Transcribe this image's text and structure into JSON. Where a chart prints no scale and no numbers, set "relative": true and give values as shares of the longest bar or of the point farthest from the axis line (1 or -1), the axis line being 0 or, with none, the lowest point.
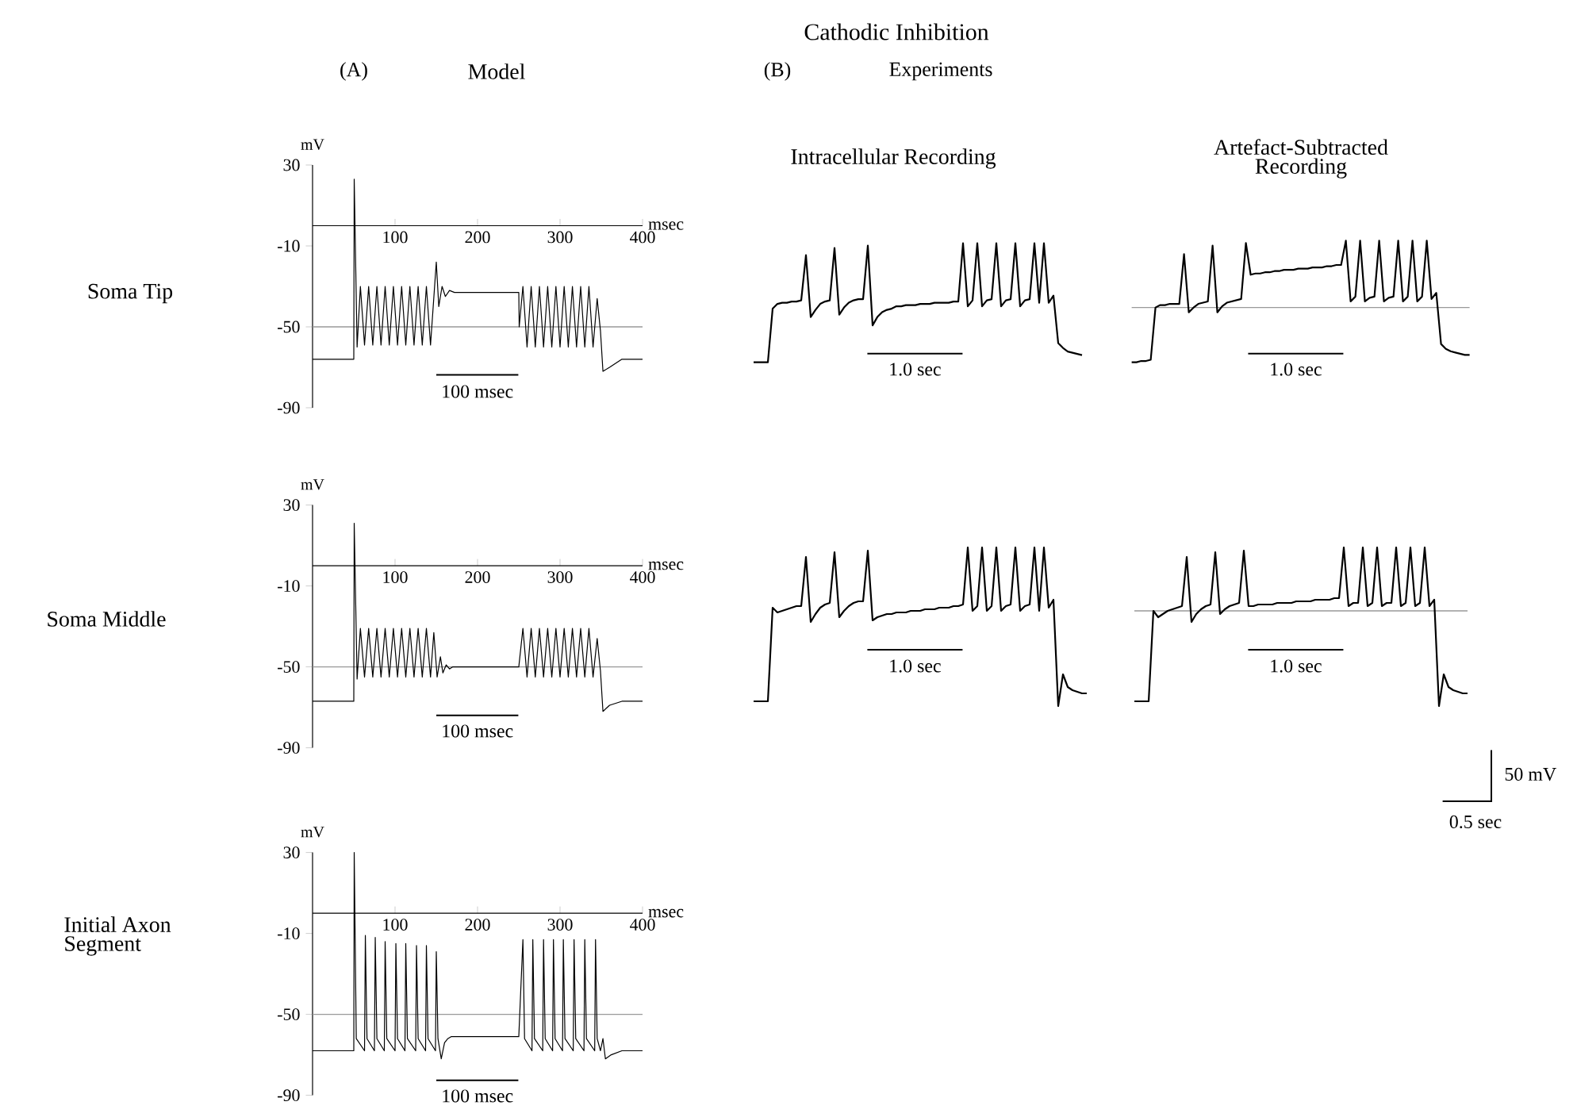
{
  "chart_data": [
    {
      "type": "line",
      "title": "Model",
      "subtitle": "Soma Tip",
      "annotations": [
        "Cathodic Inhibition",
        "(A)",
        "100 msec"
      ],
      "xlabel": "msec",
      "ylabel": "mV",
      "xlim": [
        0,
        400
      ],
      "ylim": [
        -90,
        30
      ],
      "xticks": [
        100,
        200,
        300,
        400
      ],
      "yticks": [
        30,
        -10,
        -50,
        -90
      ],
      "ref_lines": [
        {
          "axis": "y",
          "value": -50,
          "color": "#999999"
        }
      ],
      "series": [
        {
          "color": "#000000",
          "x": [
            0,
            50,
            50.5,
            54,
            58,
            63,
            68,
            73,
            78,
            83,
            88,
            93,
            98,
            103,
            108,
            113,
            118,
            123,
            128,
            133,
            138,
            143,
            150,
            153,
            157,
            161,
            166,
            172,
            250,
            250.5,
            255,
            260,
            265,
            270,
            275,
            280,
            285,
            290,
            295,
            300,
            305,
            310,
            315,
            320,
            325,
            330,
            335,
            340,
            345,
            349,
            352,
            360,
            375,
            400
          ],
          "values": [
            -66,
            -66,
            23,
            -60,
            -30,
            -59,
            -30,
            -59,
            -30,
            -59,
            -30,
            -59,
            -30,
            -59,
            -30,
            -59,
            -30,
            -59,
            -30,
            -59,
            -30,
            -59,
            -18,
            -40,
            -30,
            -35,
            -32,
            -33,
            -33,
            -50,
            -30,
            -60,
            -30,
            -60,
            -30,
            -60,
            -30,
            -60,
            -30,
            -60,
            -30,
            -60,
            -30,
            -60,
            -30,
            -60,
            -30,
            -60,
            -36,
            -52,
            -72,
            -70,
            -66,
            -66
          ]
        }
      ]
    },
    {
      "type": "line",
      "subtitle": "Soma Middle",
      "annotations": [
        "100 msec"
      ],
      "xlabel": "msec",
      "ylabel": "mV",
      "xlim": [
        0,
        400
      ],
      "ylim": [
        -90,
        30
      ],
      "xticks": [
        100,
        200,
        300,
        400
      ],
      "yticks": [
        30,
        -10,
        -50,
        -90
      ],
      "ref_lines": [
        {
          "axis": "y",
          "value": -50,
          "color": "#999999"
        }
      ],
      "series": [
        {
          "color": "#000000",
          "x": [
            0,
            50,
            50.5,
            54,
            58,
            63,
            68,
            73,
            78,
            83,
            88,
            93,
            98,
            103,
            108,
            113,
            118,
            123,
            128,
            133,
            138,
            143,
            147,
            151,
            155,
            158,
            162,
            166,
            170,
            250,
            255,
            260,
            265,
            270,
            275,
            280,
            285,
            290,
            295,
            300,
            305,
            310,
            315,
            320,
            325,
            330,
            335,
            340,
            345,
            349,
            352,
            360,
            375,
            400
          ],
          "values": [
            -67,
            -67,
            21,
            -56,
            -31,
            -55,
            -31,
            -55,
            -31,
            -55,
            -31,
            -55,
            -31,
            -55,
            -31,
            -55,
            -31,
            -55,
            -31,
            -55,
            -31,
            -55,
            -33,
            -55,
            -45,
            -53,
            -49,
            -51,
            -50,
            -50,
            -31,
            -55,
            -31,
            -55,
            -31,
            -55,
            -31,
            -55,
            -31,
            -55,
            -31,
            -55,
            -31,
            -55,
            -31,
            -55,
            -31,
            -55,
            -36,
            -52,
            -72,
            -69,
            -67,
            -67
          ]
        }
      ]
    },
    {
      "type": "line",
      "subtitle": "Initial Axon Segment",
      "annotations": [
        "100 msec"
      ],
      "xlabel": "msec",
      "ylabel": "mV",
      "xlim": [
        0,
        400
      ],
      "ylim": [
        -90,
        30
      ],
      "xticks": [
        100,
        200,
        300,
        400
      ],
      "yticks": [
        30,
        -10,
        -50,
        -90
      ],
      "ref_lines": [
        {
          "axis": "y",
          "value": -50,
          "color": "#999999"
        }
      ],
      "series": [
        {
          "color": "#000000",
          "x": [
            0,
            50,
            50.5,
            53,
            63,
            64,
            66,
            75,
            76,
            78,
            87,
            88,
            90,
            100,
            101,
            103,
            112,
            113,
            115,
            125,
            126,
            128,
            137,
            138,
            140,
            149,
            150,
            152,
            156,
            160,
            164,
            168,
            250,
            255,
            257,
            266,
            267,
            269,
            279,
            280,
            282,
            291,
            292,
            294,
            303,
            304,
            306,
            316,
            317,
            319,
            329,
            330,
            332,
            342,
            343,
            345,
            349,
            352,
            355,
            362,
            375,
            400
          ],
          "values": [
            -68,
            -68,
            30,
            -62,
            -68,
            -11,
            -62,
            -68,
            -12,
            -62,
            -68,
            -14,
            -62,
            -68,
            -15,
            -62,
            -68,
            -15,
            -62,
            -68,
            -16,
            -62,
            -68,
            -16,
            -62,
            -68,
            -19,
            -62,
            -72,
            -64,
            -62,
            -61,
            -61,
            -13,
            -62,
            -68,
            -13,
            -62,
            -68,
            -13,
            -62,
            -68,
            -13,
            -62,
            -68,
            -13,
            -62,
            -68,
            -13,
            -62,
            -68,
            -13,
            -62,
            -68,
            -13,
            -62,
            -68,
            -62,
            -72,
            -70,
            -68,
            -68
          ]
        }
      ]
    },
    {
      "type": "line",
      "relative": true,
      "tick_labels": false,
      "title": "Intracellular Recording",
      "annotations": [
        "(B)",
        "Experiments",
        "1.0 sec"
      ],
      "categories": [
        null,
        null,
        null,
        null,
        null,
        null,
        null,
        null,
        null,
        null,
        null,
        null,
        null,
        null,
        null,
        null,
        null,
        null,
        null,
        null,
        null,
        null,
        null,
        null,
        null,
        null,
        null,
        null,
        null,
        null,
        null,
        null,
        null,
        null,
        null,
        null,
        null,
        null,
        null,
        null,
        null,
        null,
        null,
        null,
        null,
        null,
        null,
        null,
        null,
        null,
        null,
        null,
        null,
        null,
        null,
        null,
        null,
        null,
        null,
        null,
        null,
        null,
        null,
        null,
        null,
        null,
        null,
        null,
        null,
        null
      ],
      "series": [
        {
          "color": "#000000",
          "values": [
            0,
            0,
            0,
            0,
            0.45,
            0.49,
            0.5,
            0.5,
            0.51,
            0.51,
            0.52,
            0.9,
            0.38,
            0.44,
            0.49,
            0.51,
            0.52,
            0.96,
            0.4,
            0.46,
            0.5,
            0.52,
            0.53,
            0.53,
            0.98,
            0.31,
            0.38,
            0.42,
            0.44,
            0.45,
            0.47,
            0.47,
            0.48,
            0.48,
            0.48,
            0.49,
            0.49,
            0.49,
            0.5,
            0.5,
            0.5,
            0.5,
            0.51,
            0.51,
            1.0,
            0.47,
            0.52,
            1.0,
            0.47,
            0.52,
            0.53,
            1.0,
            0.47,
            0.52,
            0.53,
            1.0,
            0.47,
            0.52,
            0.53,
            1.0,
            0.5,
            1.0,
            0.5,
            0.56,
            0.16,
            0.12,
            0.09,
            0.08,
            0.07,
            0.06
          ]
        }
      ]
    },
    {
      "type": "line",
      "relative": true,
      "tick_labels": false,
      "title": "Artefact-Subtracted Recording",
      "annotations": [
        "1.0 sec"
      ],
      "categories": [
        null,
        null,
        null,
        null,
        null,
        null,
        null,
        null,
        null,
        null,
        null,
        null,
        null,
        null,
        null,
        null,
        null,
        null,
        null,
        null,
        null,
        null,
        null,
        null,
        null,
        null,
        null,
        null,
        null,
        null,
        null,
        null,
        null,
        null,
        null,
        null,
        null,
        null,
        null,
        null,
        null,
        null,
        null,
        null,
        null,
        null,
        null,
        null,
        null,
        null,
        null,
        null,
        null,
        null,
        null,
        null,
        null,
        null,
        null,
        null,
        null,
        null,
        null,
        null,
        null,
        null,
        null,
        null,
        null,
        null,
        null,
        null
      ],
      "ref_lines": [
        {
          "axis": "y",
          "value": 0.45,
          "color": "#999999"
        }
      ],
      "series": [
        {
          "color": "#000000",
          "values": [
            0,
            0,
            0.01,
            0.01,
            0.02,
            0.45,
            0.47,
            0.47,
            0.48,
            0.48,
            0.48,
            0.89,
            0.41,
            0.45,
            0.48,
            0.49,
            0.5,
            0.96,
            0.41,
            0.46,
            0.49,
            0.5,
            0.51,
            0.52,
            0.98,
            0.72,
            0.73,
            0.73,
            0.74,
            0.74,
            0.75,
            0.75,
            0.76,
            0.76,
            0.76,
            0.77,
            0.77,
            0.77,
            0.78,
            0.78,
            0.78,
            0.79,
            0.79,
            0.8,
            0.8,
            1.0,
            0.5,
            0.54,
            1.0,
            0.5,
            0.53,
            0.54,
            1.0,
            0.5,
            0.53,
            0.54,
            1.0,
            0.5,
            0.54,
            1.0,
            0.5,
            0.54,
            1.0,
            0.52,
            0.57,
            0.15,
            0.11,
            0.09,
            0.08,
            0.07,
            0.06,
            0.06
          ]
        }
      ]
    },
    {
      "type": "line",
      "relative": true,
      "tick_labels": false,
      "annotations": [
        "1.0 sec"
      ],
      "categories": [
        null,
        null,
        null,
        null,
        null,
        null,
        null,
        null,
        null,
        null,
        null,
        null,
        null,
        null,
        null,
        null,
        null,
        null,
        null,
        null,
        null,
        null,
        null,
        null,
        null,
        null,
        null,
        null,
        null,
        null,
        null,
        null,
        null,
        null,
        null,
        null,
        null,
        null,
        null,
        null,
        null,
        null,
        null,
        null,
        null,
        null,
        null,
        null,
        null,
        null,
        null,
        null,
        null,
        null,
        null,
        null,
        null,
        null,
        null,
        null,
        null,
        null,
        null,
        null,
        null,
        null,
        null,
        null,
        null,
        null,
        null
      ],
      "series": [
        {
          "color": "#000000",
          "values": [
            0.03,
            0.03,
            0.03,
            0.03,
            0.62,
            0.59,
            0.6,
            0.61,
            0.62,
            0.63,
            0.63,
            0.94,
            0.53,
            0.58,
            0.62,
            0.64,
            0.65,
            0.97,
            0.56,
            0.6,
            0.63,
            0.65,
            0.66,
            0.66,
            0.98,
            0.54,
            0.56,
            0.57,
            0.58,
            0.58,
            0.59,
            0.59,
            0.59,
            0.6,
            0.6,
            0.6,
            0.61,
            0.61,
            0.61,
            0.62,
            0.62,
            0.62,
            0.63,
            0.63,
            0.64,
            1.0,
            0.6,
            0.63,
            1.0,
            0.6,
            0.63,
            1.0,
            0.6,
            0.63,
            0.64,
            1.0,
            0.6,
            0.63,
            0.64,
            1.0,
            0.6,
            1.0,
            0.62,
            0.67,
            0,
            0.2,
            0.12,
            0.1,
            0.09,
            0.08,
            0.08
          ]
        }
      ]
    },
    {
      "type": "line",
      "relative": true,
      "tick_labels": false,
      "annotations": [
        "1.0 sec",
        "50 mV",
        "0.5 sec"
      ],
      "categories": [
        null,
        null,
        null,
        null,
        null,
        null,
        null,
        null,
        null,
        null,
        null,
        null,
        null,
        null,
        null,
        null,
        null,
        null,
        null,
        null,
        null,
        null,
        null,
        null,
        null,
        null,
        null,
        null,
        null,
        null,
        null,
        null,
        null,
        null,
        null,
        null,
        null,
        null,
        null,
        null,
        null,
        null,
        null,
        null,
        null,
        null,
        null,
        null,
        null,
        null,
        null,
        null,
        null,
        null,
        null,
        null,
        null,
        null,
        null,
        null,
        null,
        null,
        null,
        null,
        null,
        null,
        null,
        null,
        null,
        null,
        null
      ],
      "ref_lines": [
        {
          "axis": "y",
          "value": 0.6,
          "color": "#999999"
        }
      ],
      "series": [
        {
          "color": "#000000",
          "values": [
            0.03,
            0.03,
            0.03,
            0.03,
            0.6,
            0.56,
            0.58,
            0.6,
            0.61,
            0.62,
            0.63,
            0.94,
            0.53,
            0.58,
            0.61,
            0.63,
            0.64,
            0.97,
            0.58,
            0.61,
            0.63,
            0.64,
            0.65,
            0.98,
            0.63,
            0.63,
            0.64,
            0.64,
            0.64,
            0.64,
            0.65,
            0.65,
            0.65,
            0.65,
            0.66,
            0.66,
            0.66,
            0.66,
            0.67,
            0.67,
            0.67,
            0.67,
            0.68,
            0.68,
            1.0,
            0.63,
            0.65,
            0.65,
            1.0,
            0.63,
            0.65,
            1.0,
            0.63,
            0.65,
            0.65,
            1.0,
            0.63,
            0.65,
            1.0,
            0.63,
            0.65,
            1.0,
            0.63,
            0.67,
            0,
            0.2,
            0.12,
            0.1,
            0.09,
            0.08,
            0.08
          ]
        }
      ]
    }
  ]
}
